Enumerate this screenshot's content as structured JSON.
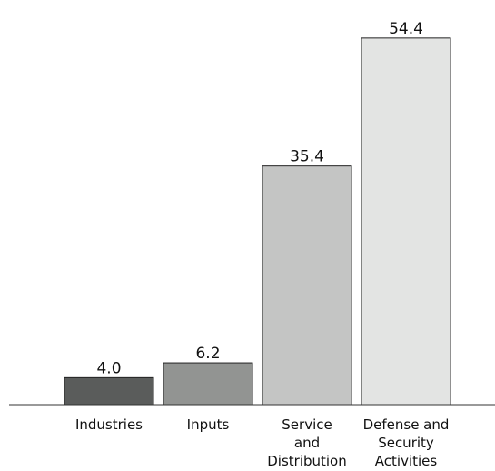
{
  "chart_data": {
    "type": "bar",
    "categories": [
      [
        "Industries"
      ],
      [
        "Inputs"
      ],
      [
        "Service",
        "and",
        "Distribution"
      ],
      [
        "Defense and",
        "Security",
        "Activities"
      ]
    ],
    "values": [
      4.0,
      6.2,
      35.4,
      54.4
    ],
    "value_labels": [
      "4.0",
      "6.2",
      "35.4",
      "54.4"
    ],
    "bar_colors": [
      "#5a5c5b",
      "#929492",
      "#c4c5c4",
      "#e3e4e3"
    ],
    "bar_edge_color": "#222222",
    "axis_color": "#333333",
    "ylim": [
      0,
      56
    ],
    "title": "",
    "xlabel": "",
    "ylabel": "",
    "grid": false,
    "legend": "none"
  }
}
